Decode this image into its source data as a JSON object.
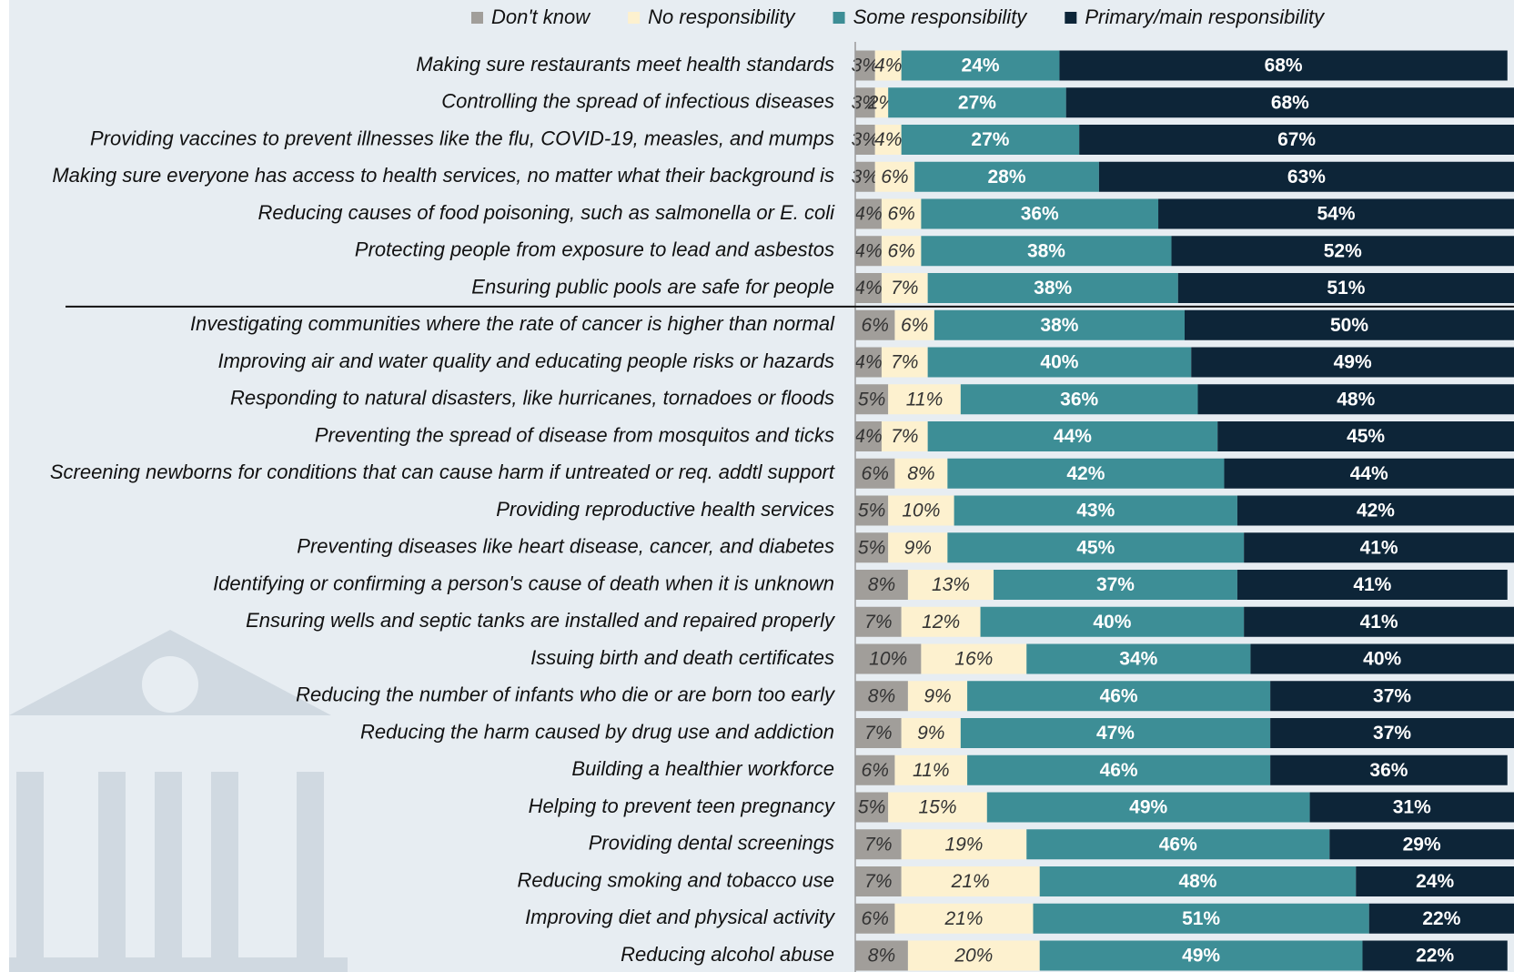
{
  "chart_data": {
    "type": "stacked-bar-horizontal",
    "categories": [
      "Making sure restaurants meet health standards",
      "Controlling the spread of infectious diseases",
      "Providing vaccines to prevent illnesses like the flu, COVID-19, measles, and mumps",
      "Making sure everyone has access to health services, no matter what their background is",
      "Reducing causes of food poisoning, such as salmonella or E. coli",
      "Protecting people from exposure to lead and asbestos",
      "Ensuring public pools are safe for people",
      "Investigating communities where the rate of cancer is higher than normal",
      "Improving air and water quality and educating people risks or hazards",
      "Responding to natural disasters, like hurricanes, tornadoes or floods",
      "Preventing the spread of disease from mosquitos and ticks",
      "Screening newborns for conditions that can cause harm if untreated or req. addtl support",
      "Providing reproductive health services",
      "Preventing diseases like heart disease, cancer, and diabetes",
      "Identifying or confirming a person's cause of death when it is unknown",
      "Ensuring wells and septic tanks are installed and repaired properly",
      "Issuing birth and death certificates",
      "Reducing the number of infants who die or are born too early",
      "Reducing the harm caused by drug use and addiction",
      "Building a healthier workforce",
      "Helping to prevent teen pregnancy",
      "Providing dental screenings",
      "Reducing smoking and tobacco use",
      "Improving diet and physical activity",
      "Reducing alcohol abuse"
    ],
    "xlim": [
      0,
      100
    ],
    "series": [
      {
        "name": "Don't know",
        "color": "#a19e9a",
        "values": [
          3,
          3,
          3,
          3,
          4,
          4,
          4,
          6,
          4,
          5,
          4,
          6,
          5,
          5,
          8,
          7,
          10,
          8,
          7,
          6,
          5,
          7,
          7,
          6,
          8
        ],
        "value_labels": [
          "3%",
          "3%",
          "3%",
          "3%",
          "4%",
          "4%",
          "4%",
          "6%",
          "4%",
          "5%",
          "4%",
          "6%",
          "5%",
          "5%",
          "8%",
          "7%",
          "10%",
          "8%",
          "7%",
          "6%",
          "5%",
          "7%",
          "7%",
          "6%",
          "8%"
        ]
      },
      {
        "name": "No responsibility",
        "color": "#fdf1cf",
        "values": [
          4,
          2,
          4,
          6,
          6,
          6,
          7,
          6,
          7,
          11,
          7,
          8,
          10,
          9,
          13,
          12,
          16,
          9,
          9,
          11,
          15,
          19,
          21,
          21,
          20
        ],
        "value_labels": [
          "4%",
          "2%",
          "4%",
          "6%",
          "6%",
          "6%",
          "7%",
          "6%",
          "7%",
          "11%",
          "7%",
          "8%",
          "10%",
          "9%",
          "13%",
          "12%",
          "16%",
          "9%",
          "9%",
          "11%",
          "15%",
          "19%",
          "21%",
          "21%",
          "20%"
        ]
      },
      {
        "name": "Some responsibility",
        "color": "#3d8e96",
        "values": [
          24,
          27,
          27,
          28,
          36,
          38,
          38,
          38,
          40,
          36,
          44,
          42,
          43,
          45,
          37,
          40,
          34,
          46,
          47,
          46,
          49,
          46,
          48,
          51,
          49
        ],
        "value_labels": [
          "24%",
          "27%",
          "27%",
          "28%",
          "36%",
          "38%",
          "38%",
          "38%",
          "40%",
          "36%",
          "44%",
          "42%",
          "43%",
          "45%",
          "37%",
          "40%",
          "34%",
          "46%",
          "47%",
          "46%",
          "49%",
          "46%",
          "48%",
          "51%",
          "49%"
        ]
      },
      {
        "name": "Primary/main responsibility",
        "color": "#0d2538",
        "values": [
          68,
          68,
          67,
          63,
          54,
          52,
          51,
          50,
          49,
          48,
          45,
          44,
          42,
          41,
          41,
          41,
          40,
          37,
          37,
          36,
          31,
          29,
          24,
          22,
          22
        ],
        "value_labels": [
          "68%",
          "68%",
          "67%",
          "63%",
          "54%",
          "52%",
          "51%",
          "50%",
          "49%",
          "48%",
          "45%",
          "44%",
          "42%",
          "41%",
          "41%",
          "41%",
          "40%",
          "37%",
          "37%",
          "36%",
          "31%",
          "29%",
          "24%",
          "22%",
          "22%"
        ]
      }
    ]
  }
}
